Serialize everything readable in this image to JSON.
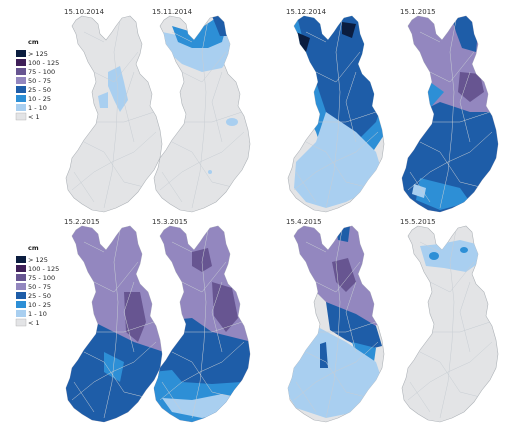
{
  "legend": {
    "unit": "cm",
    "classes": [
      {
        "label": "> 125",
        "color": "#0b1d3f"
      },
      {
        "label": "100 - 125",
        "color": "#3e1f58"
      },
      {
        "label": "75 - 100",
        "color": "#675591"
      },
      {
        "label": "50 - 75",
        "color": "#9387bf"
      },
      {
        "label": "25 - 50",
        "color": "#1e5da8"
      },
      {
        "label": "10 - 25",
        "color": "#2d8fd6"
      },
      {
        "label": "1 - 10",
        "color": "#a9cff0"
      },
      {
        "label": "< 1",
        "color": "#e3e4e6"
      }
    ]
  },
  "maps": [
    {
      "date": "15.10.2014"
    },
    {
      "date": "15.11.2014"
    },
    {
      "date": "15.12.2014"
    },
    {
      "date": "15.1.2015"
    },
    {
      "date": "15.2.2015"
    },
    {
      "date": "15.3.2015"
    },
    {
      "date": "15.4.2015"
    },
    {
      "date": "15.5.2015"
    }
  ]
}
